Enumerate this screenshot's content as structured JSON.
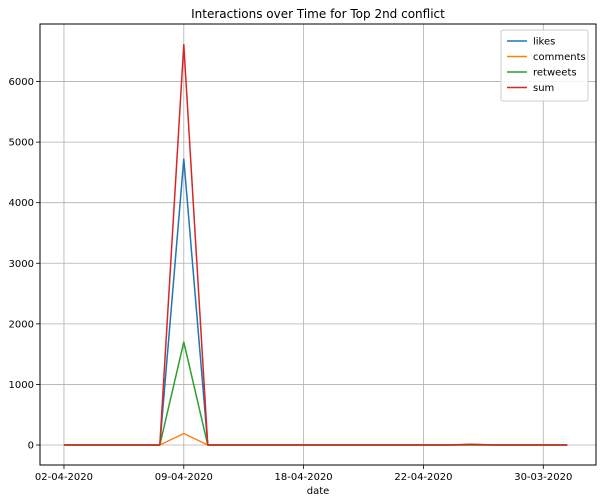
{
  "chart_data": {
    "type": "line",
    "title": "Interactions over Time for Top 2nd conflict",
    "xlabel": "date",
    "ylabel": "",
    "x": [
      0,
      1,
      2,
      3,
      4,
      5,
      6,
      7,
      8,
      9,
      10,
      11,
      12,
      13,
      14,
      15,
      16,
      17,
      18,
      19,
      20,
      21
    ],
    "xticks": [
      {
        "pos": 0,
        "label": "02-04-2020"
      },
      {
        "pos": 5,
        "label": "09-04-2020"
      },
      {
        "pos": 10,
        "label": "18-04-2020"
      },
      {
        "pos": 15,
        "label": "22-04-2020"
      },
      {
        "pos": 20,
        "label": "30-03-2020"
      }
    ],
    "yticks": [
      0,
      1000,
      2000,
      3000,
      4000,
      5000,
      6000
    ],
    "xlim": [
      -1,
      22.2
    ],
    "ylim": [
      -330,
      6950
    ],
    "grid": true,
    "legend_position": "top-right",
    "series": [
      {
        "name": "likes",
        "color": "#1f77b4",
        "values": [
          0,
          0,
          0,
          0,
          0,
          4720,
          0,
          0,
          0,
          0,
          0,
          0,
          0,
          0,
          0,
          0,
          0,
          10,
          0,
          0,
          0,
          0
        ]
      },
      {
        "name": "comments",
        "color": "#ff7f0e",
        "values": [
          0,
          0,
          0,
          0,
          0,
          190,
          0,
          0,
          0,
          0,
          0,
          0,
          0,
          0,
          0,
          0,
          0,
          0,
          0,
          0,
          0,
          0
        ]
      },
      {
        "name": "retweets",
        "color": "#2ca02c",
        "values": [
          0,
          0,
          0,
          0,
          0,
          1700,
          0,
          0,
          0,
          0,
          0,
          0,
          0,
          0,
          0,
          0,
          0,
          0,
          0,
          0,
          0,
          0
        ]
      },
      {
        "name": "sum",
        "color": "#d62728",
        "values": [
          0,
          0,
          0,
          0,
          0,
          6610,
          0,
          0,
          0,
          0,
          0,
          0,
          0,
          0,
          0,
          0,
          0,
          10,
          0,
          0,
          0,
          0
        ]
      }
    ]
  }
}
